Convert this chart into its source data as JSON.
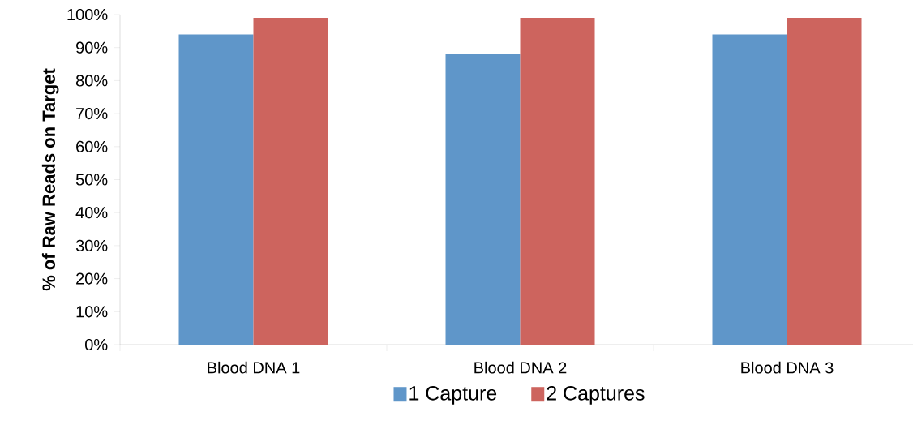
{
  "chart_data": {
    "type": "bar",
    "ylabel": "% of Raw Reads on Target",
    "categories": [
      "Blood DNA 1",
      "Blood DNA 2",
      "Blood DNA 3"
    ],
    "series": [
      {
        "name": "1 Capture",
        "color": "#5f96c9",
        "values": [
          94,
          88,
          94
        ]
      },
      {
        "name": "2 Captures",
        "color": "#cd645e",
        "values": [
          99,
          99,
          99
        ]
      }
    ],
    "ylim": [
      0,
      100
    ],
    "yticks": [
      {
        "value": 0,
        "label": "0%"
      },
      {
        "value": 10,
        "label": "10%"
      },
      {
        "value": 20,
        "label": "20%"
      },
      {
        "value": 30,
        "label": "30%"
      },
      {
        "value": 40,
        "label": "40%"
      },
      {
        "value": 50,
        "label": "50%"
      },
      {
        "value": 60,
        "label": "60%"
      },
      {
        "value": 70,
        "label": "70%"
      },
      {
        "value": 80,
        "label": "80%"
      },
      {
        "value": 90,
        "label": "90%"
      },
      {
        "value": 100,
        "label": "100%"
      }
    ],
    "grid": false,
    "legend": "bottom"
  }
}
